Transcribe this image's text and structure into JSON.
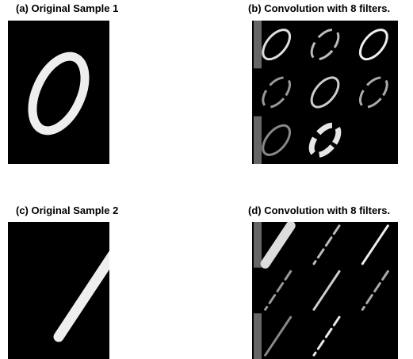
{
  "panels": [
    {
      "caption": "(a) Original Sample 1"
    },
    {
      "caption": "(b) Convolution with 8 filters."
    },
    {
      "caption": "(c) Original Sample 2"
    },
    {
      "caption": "(d) Convolution with 8 filters."
    }
  ]
}
